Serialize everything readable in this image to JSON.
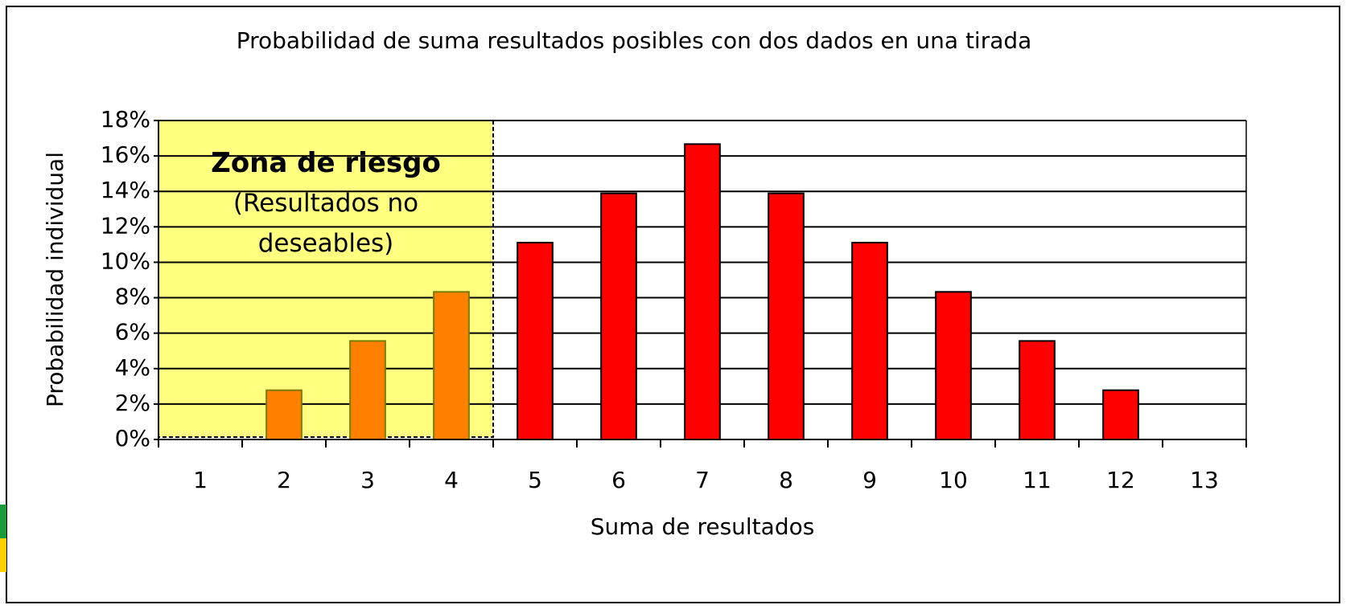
{
  "chart_data": {
    "type": "bar",
    "title": "Probabilidad de suma resultados posibles con dos dados en una tirada",
    "x_label": "Suma de resultados",
    "y_label": "Probabilidad individual",
    "categories": [
      "1",
      "2",
      "3",
      "4",
      "5",
      "6",
      "7",
      "8",
      "9",
      "10",
      "11",
      "12",
      "13"
    ],
    "values": [
      null,
      2.78,
      5.56,
      8.33,
      11.11,
      13.89,
      16.67,
      13.89,
      11.11,
      8.33,
      5.56,
      2.78,
      null
    ],
    "colors": [
      "#ff8000",
      "#ff8000",
      "#ff8000",
      "#ff8000",
      "#ff0000",
      "#ff0000",
      "#ff0000",
      "#ff0000",
      "#ff0000",
      "#ff0000",
      "#ff0000",
      "#ff0000",
      "#ff0000"
    ],
    "ylim": [
      0,
      18
    ],
    "yticks": [
      {
        "value": 0,
        "label": "0%"
      },
      {
        "value": 2,
        "label": "2%"
      },
      {
        "value": 4,
        "label": "4%"
      },
      {
        "value": 6,
        "label": "6%"
      },
      {
        "value": 8,
        "label": "8%"
      },
      {
        "value": 10,
        "label": "10%"
      },
      {
        "value": 12,
        "label": "12%"
      },
      {
        "value": 14,
        "label": "14%"
      },
      {
        "value": 16,
        "label": "16%"
      },
      {
        "value": 18,
        "label": "18%"
      }
    ],
    "grid": true,
    "highlight": {
      "from": "1",
      "to": "4",
      "color": "#ffff80",
      "title": "Zona de riesgo",
      "text": "(Resultados no deseables)"
    }
  }
}
